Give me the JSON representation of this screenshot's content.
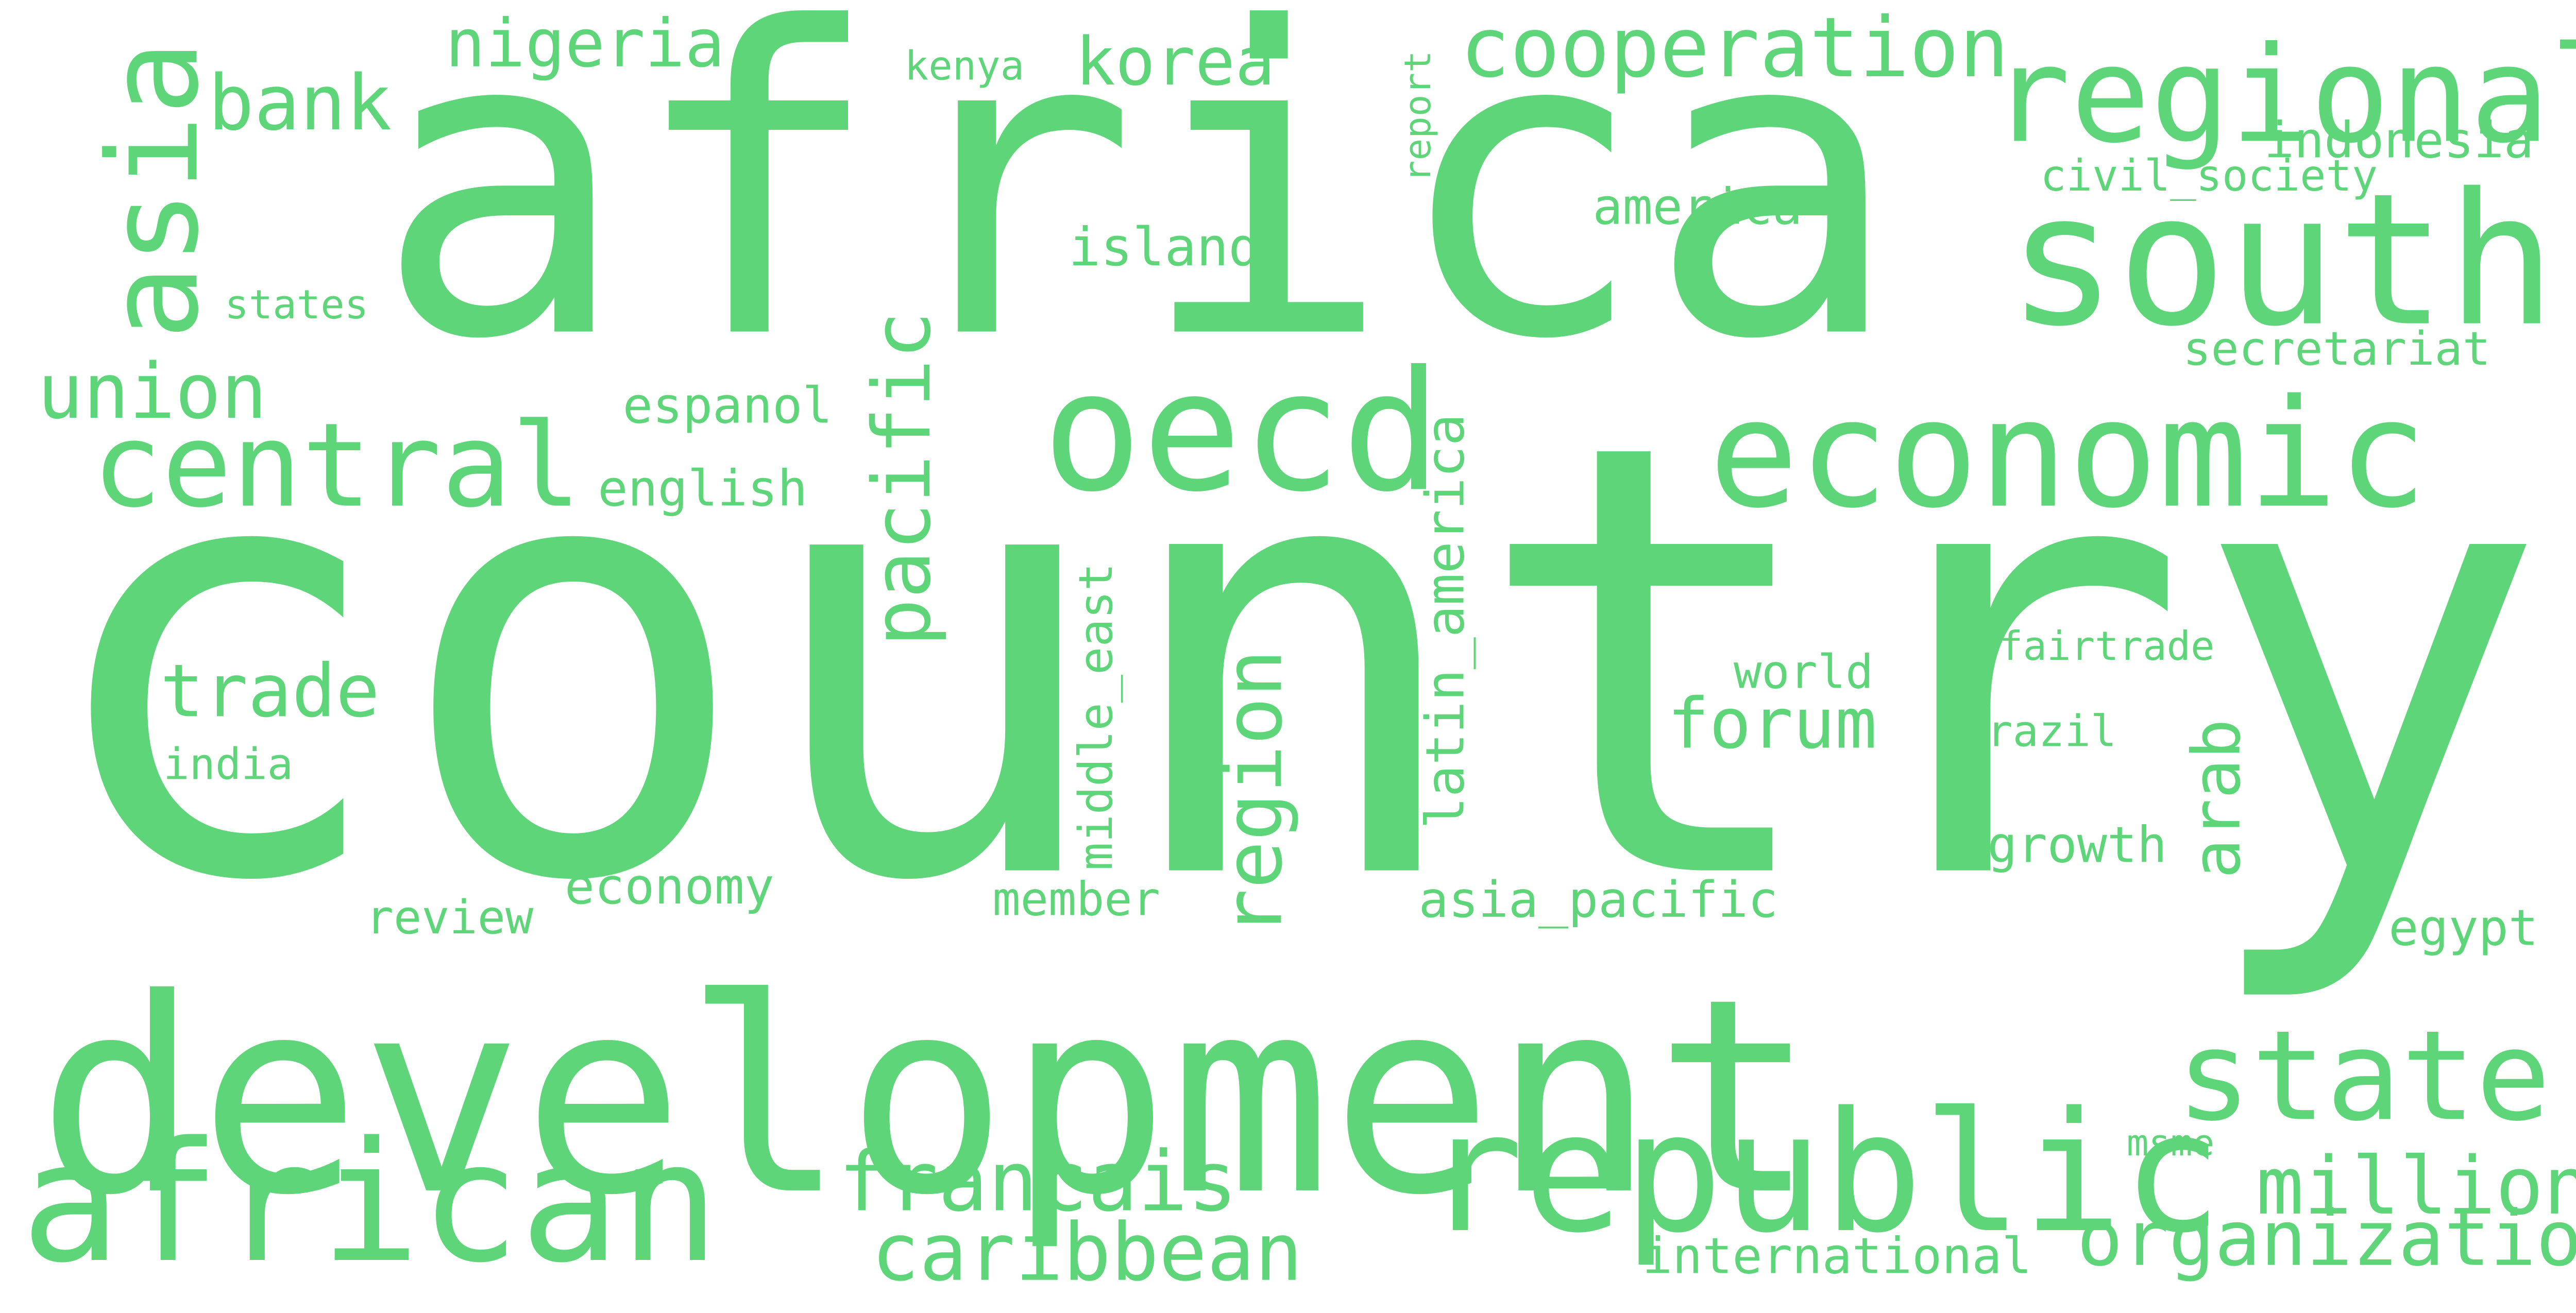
{
  "cloud": {
    "text_color": "#5fd57a",
    "background": "#ffffff",
    "words": [
      {
        "text": "country",
        "orientation": "horizontal"
      },
      {
        "text": "africa",
        "orientation": "horizontal"
      },
      {
        "text": "development",
        "orientation": "horizontal"
      },
      {
        "text": "south",
        "orientation": "horizontal"
      },
      {
        "text": "regional",
        "orientation": "horizontal"
      },
      {
        "text": "economic",
        "orientation": "horizontal"
      },
      {
        "text": "oecd",
        "orientation": "horizontal"
      },
      {
        "text": "african",
        "orientation": "horizontal"
      },
      {
        "text": "republic",
        "orientation": "horizontal"
      },
      {
        "text": "central",
        "orientation": "horizontal"
      },
      {
        "text": "state",
        "orientation": "horizontal"
      },
      {
        "text": "asia",
        "orientation": "vertical"
      },
      {
        "text": "pacific",
        "orientation": "vertical"
      },
      {
        "text": "region",
        "orientation": "vertical"
      },
      {
        "text": "cooperation",
        "orientation": "horizontal"
      },
      {
        "text": "caribbean",
        "orientation": "horizontal"
      },
      {
        "text": "organization",
        "orientation": "horizontal"
      },
      {
        "text": "francais",
        "orientation": "horizontal"
      },
      {
        "text": "million",
        "orientation": "horizontal"
      },
      {
        "text": "bank",
        "orientation": "horizontal"
      },
      {
        "text": "union",
        "orientation": "horizontal"
      },
      {
        "text": "trade",
        "orientation": "horizontal"
      },
      {
        "text": "forum",
        "orientation": "horizontal"
      },
      {
        "text": "nigeria",
        "orientation": "horizontal"
      },
      {
        "text": "korea",
        "orientation": "horizontal"
      },
      {
        "text": "arab",
        "orientation": "vertical"
      },
      {
        "text": "indonesia",
        "orientation": "horizontal"
      },
      {
        "text": "america",
        "orientation": "horizontal"
      },
      {
        "text": "island",
        "orientation": "horizontal"
      },
      {
        "text": "english",
        "orientation": "horizontal"
      },
      {
        "text": "espanol",
        "orientation": "horizontal"
      },
      {
        "text": "latin_america",
        "orientation": "vertical"
      },
      {
        "text": "middle_east",
        "orientation": "vertical"
      },
      {
        "text": "asia_pacific",
        "orientation": "horizontal"
      },
      {
        "text": "economy",
        "orientation": "horizontal"
      },
      {
        "text": "international",
        "orientation": "horizontal"
      },
      {
        "text": "secretariat",
        "orientation": "horizontal"
      },
      {
        "text": "growth",
        "orientation": "horizontal"
      },
      {
        "text": "world",
        "orientation": "horizontal"
      },
      {
        "text": "member",
        "orientation": "horizontal"
      },
      {
        "text": "review",
        "orientation": "horizontal"
      },
      {
        "text": "egypt",
        "orientation": "horizontal"
      },
      {
        "text": "kenya",
        "orientation": "horizontal"
      },
      {
        "text": "civil_society",
        "orientation": "horizontal"
      },
      {
        "text": "india",
        "orientation": "horizontal"
      },
      {
        "text": "states",
        "orientation": "horizontal"
      },
      {
        "text": "fairtrade",
        "orientation": "horizontal"
      },
      {
        "text": "brazil",
        "orientation": "horizontal"
      },
      {
        "text": "report",
        "orientation": "vertical"
      },
      {
        "text": "msme",
        "orientation": "horizontal"
      }
    ]
  }
}
